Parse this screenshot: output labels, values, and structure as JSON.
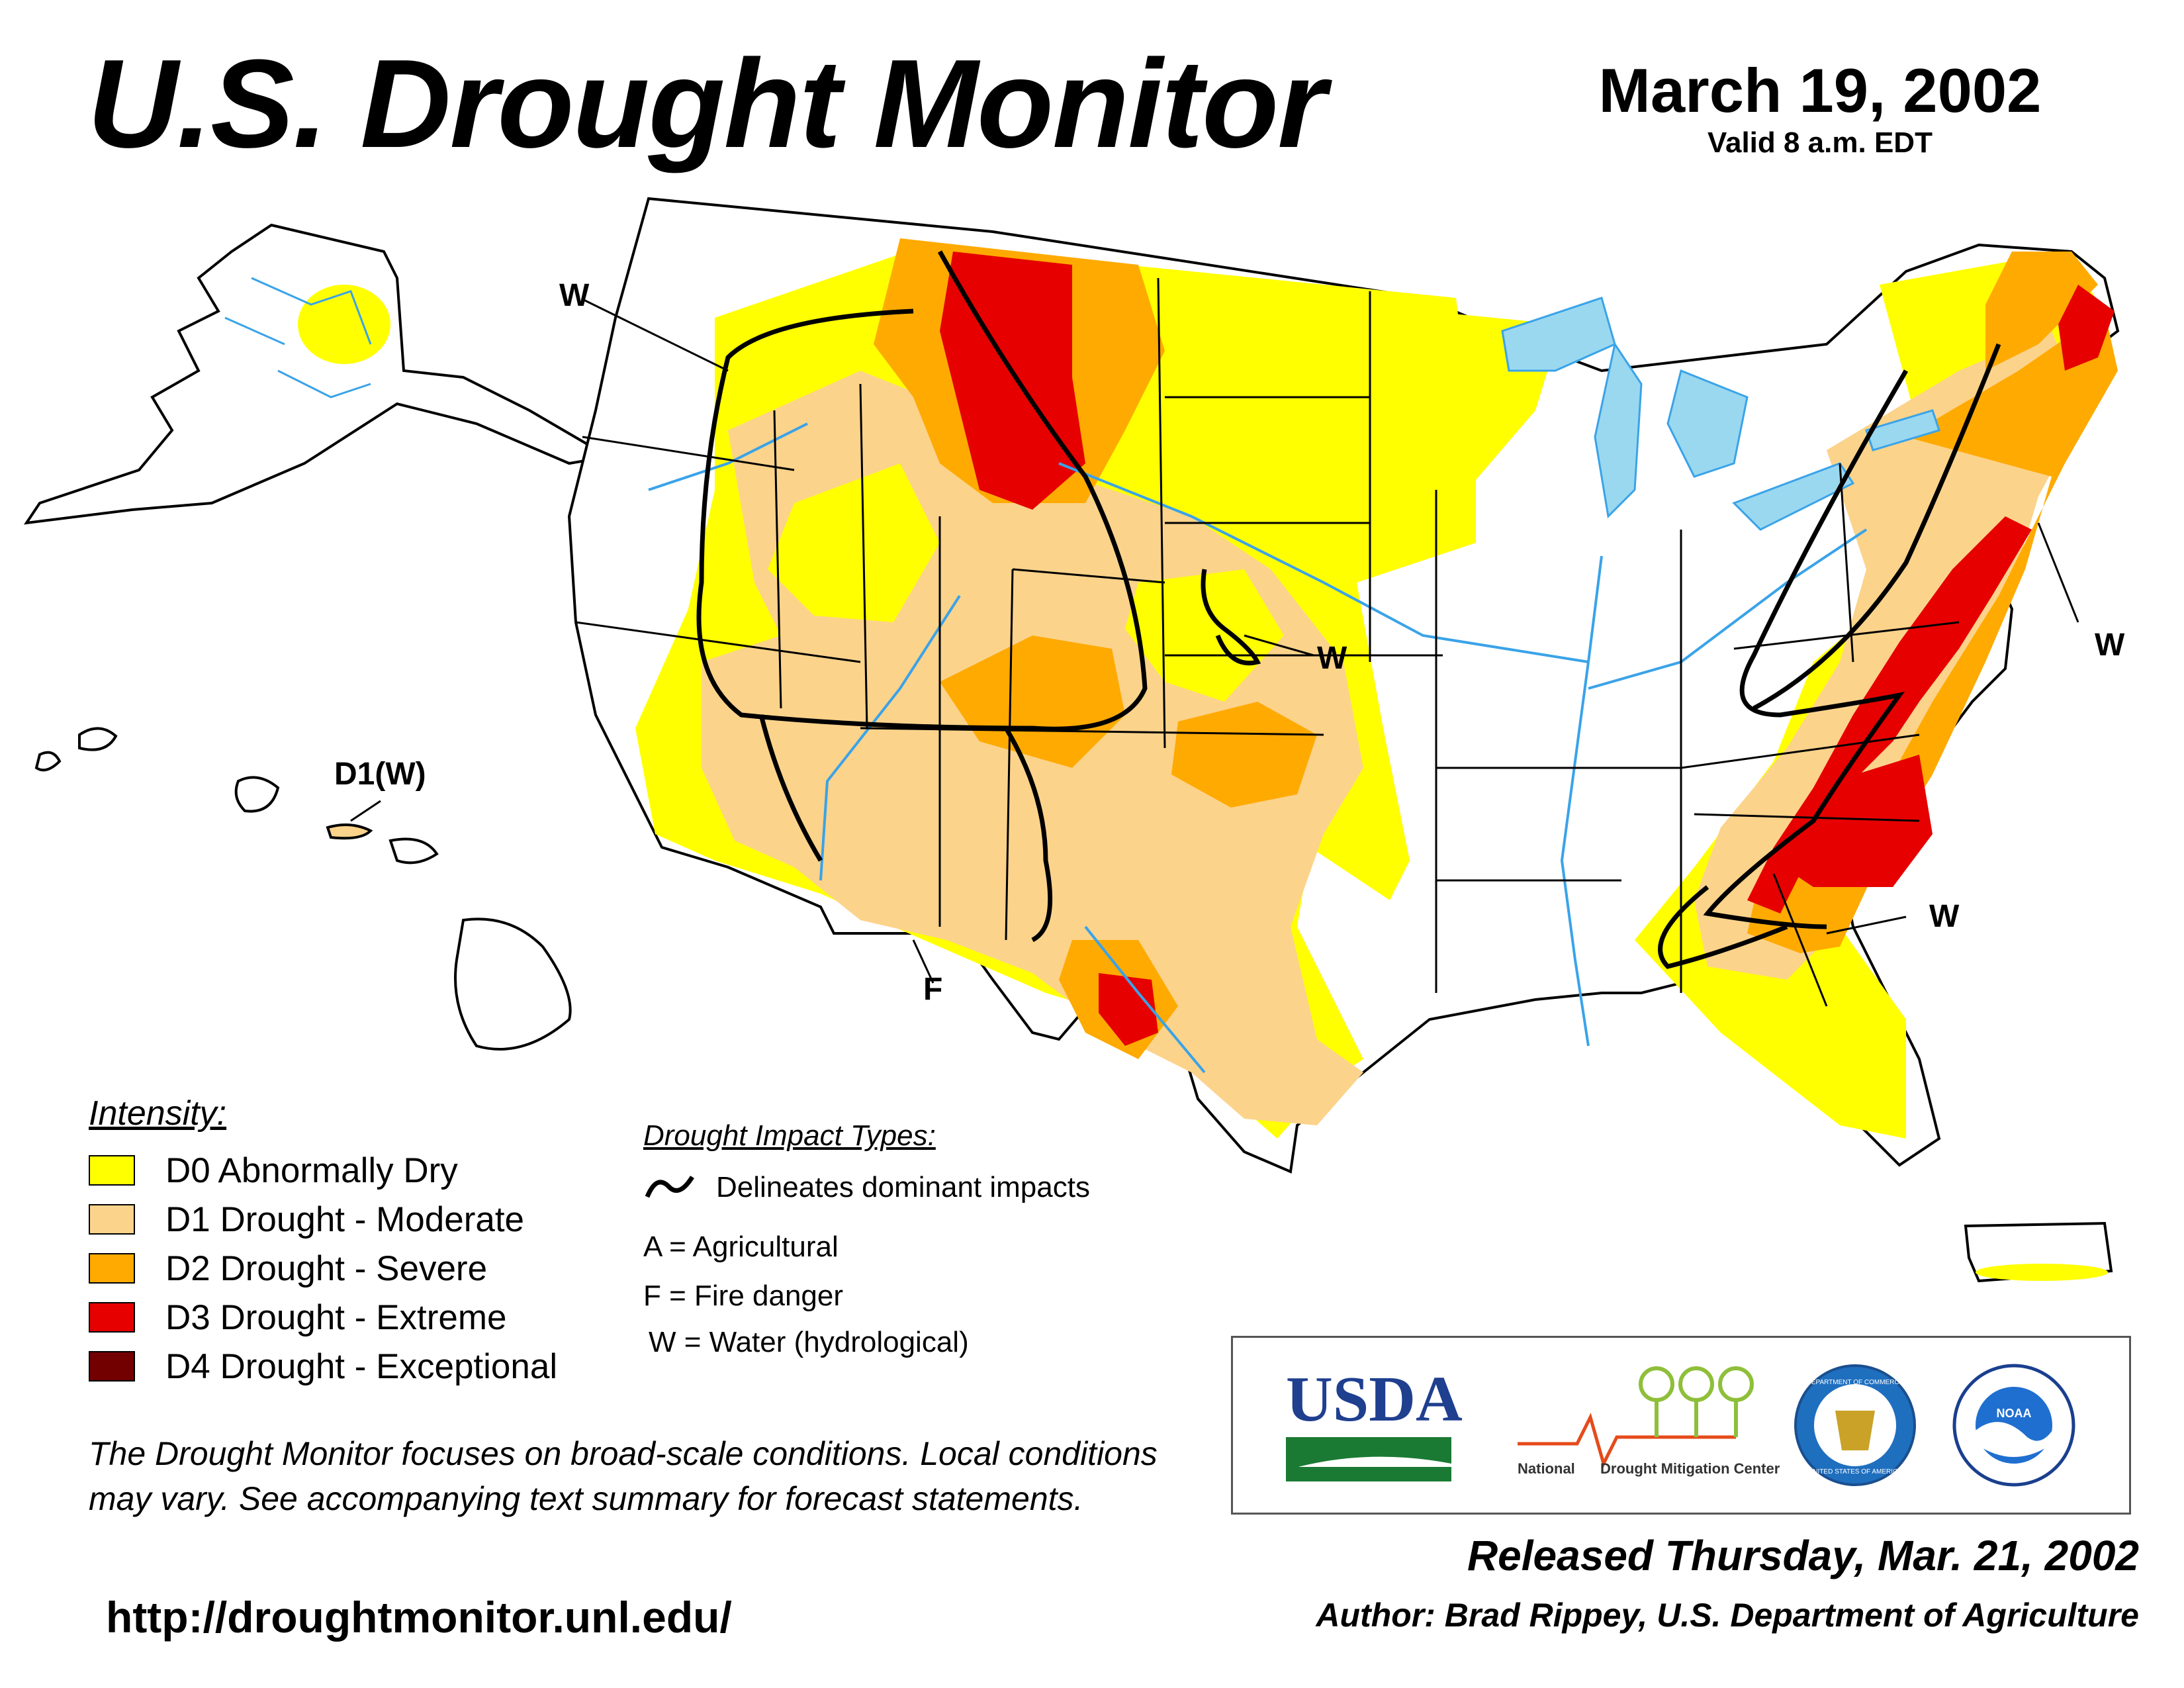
{
  "title": "U.S. Drought Monitor",
  "date": "March 19, 2002",
  "valid": "Valid 8 a.m. EDT",
  "map": {
    "labels": {
      "w_northwest": "W",
      "w_plains": "W",
      "w_northeast": "W",
      "w_southeast": "W",
      "f_southwest": "F",
      "hawaii": "D1(W)"
    },
    "colors": {
      "water": "#9ad8f0",
      "river": "#3aa3e8",
      "state_border": "#000000",
      "county_border": "#aaaaaa"
    }
  },
  "legend": {
    "title": "Intensity:",
    "items": [
      {
        "label": "D0 Abnormally Dry",
        "color": "#ffff00"
      },
      {
        "label": "D1 Drought - Moderate",
        "color": "#fcd38b"
      },
      {
        "label": "D2 Drought - Severe",
        "color": "#ffaa00"
      },
      {
        "label": "D3 Drought - Extreme",
        "color": "#e60000"
      },
      {
        "label": "D4 Drought - Exceptional",
        "color": "#730000"
      }
    ]
  },
  "impact_types": {
    "title": "Drought Impact Types:",
    "curve_label": "Delineates dominant impacts",
    "codes": [
      "A = Agricultural",
      "F = Fire danger",
      "W = Water (hydrological)"
    ]
  },
  "note": "The Drought Monitor focuses on broad-scale conditions. Local conditions may vary. See accompanying text summary for forecast statements.",
  "url": "http://droughtmonitor.unl.edu/",
  "logos": {
    "usda": "USDA",
    "ndmc_national": "National",
    "ndmc_name": "Drought Mitigation Center",
    "commerce_top": "DEPARTMENT OF COMMERCE",
    "commerce_bottom": "UNITED STATES OF AMERICA",
    "noaa": "NOAA"
  },
  "released": "Released Thursday, Mar. 21, 2002",
  "author": "Author: Brad Rippey, U.S. Department of Agriculture"
}
